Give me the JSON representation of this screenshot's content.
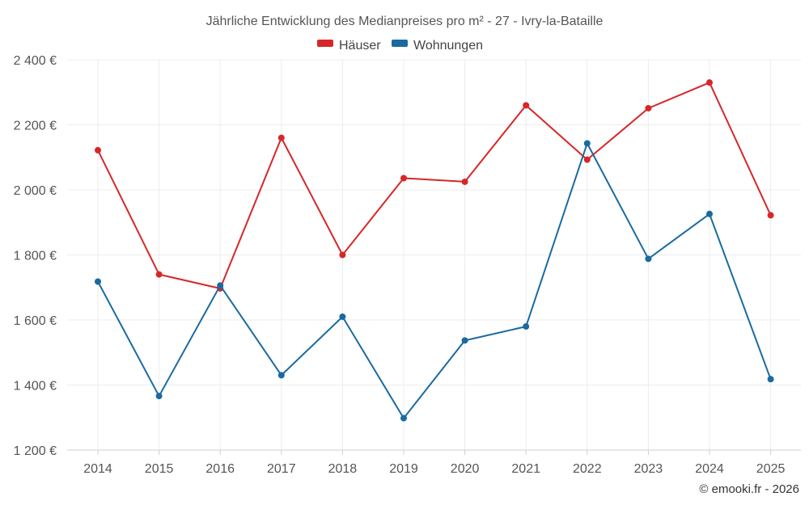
{
  "chart_data": {
    "type": "line",
    "title": "Jährliche Entwicklung des Medianpreises pro m² - 27 - Ivry-la-Bataille",
    "categories": [
      "2014",
      "2015",
      "2016",
      "2017",
      "2018",
      "2019",
      "2020",
      "2021",
      "2022",
      "2023",
      "2024",
      "2025"
    ],
    "series": [
      {
        "name": "Häuser",
        "color": "#d62728",
        "values": [
          2122,
          1740,
          1697,
          2160,
          1800,
          2036,
          2025,
          2260,
          2093,
          2251,
          2330,
          1922
        ]
      },
      {
        "name": "Wohnungen",
        "color": "#1a6aa0",
        "values": [
          1718,
          1366,
          1706,
          1430,
          1610,
          1298,
          1537,
          1580,
          2143,
          1788,
          1926,
          1418
        ]
      }
    ],
    "ylim": [
      1200,
      2400
    ],
    "yticks": [
      1200,
      1400,
      1600,
      1800,
      2000,
      2200,
      2400
    ],
    "ytick_labels": [
      "1 200 €",
      "1 400 €",
      "1 600 €",
      "1 800 €",
      "2 000 €",
      "2 200 €",
      "2 400 €"
    ],
    "legend_position": "top-center",
    "grid": true
  },
  "credit": "© emooki.fr - 2026"
}
